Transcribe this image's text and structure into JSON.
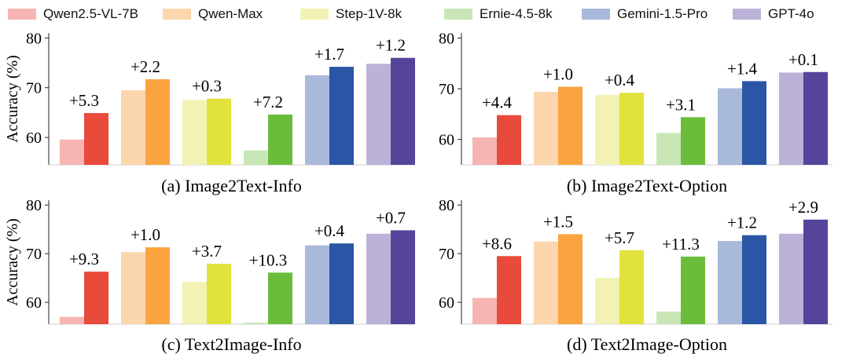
{
  "legend": [
    {
      "name": "Qwen2.5-VL-7B",
      "base": "#f6b5b3",
      "improved": "#e84a3c"
    },
    {
      "name": "Qwen-Max",
      "base": "#fcd6ad",
      "improved": "#f9a43f"
    },
    {
      "name": "Step-1V-8k",
      "base": "#f1f2b3",
      "improved": "#e1e23c"
    },
    {
      "name": "Ernie-4.5-8k",
      "base": "#c8e6b6",
      "improved": "#6cbc3c"
    },
    {
      "name": "Gemini-1.5-Pro",
      "base": "#a9b9db",
      "improved": "#2b56a6"
    },
    {
      "name": "GPT-4o",
      "base": "#bcb2d8",
      "improved": "#56449b"
    }
  ],
  "chart_data": [
    {
      "type": "bar",
      "title": "(a) Image2Text-Info",
      "ylabel": "Accuracy (%)",
      "ylim": [
        54.5,
        81
      ],
      "yticks": [
        "60",
        "70",
        "80"
      ],
      "categories": [
        "Qwen2.5-VL-7B",
        "Qwen-Max",
        "Step-1V-8k",
        "Ernie-4.5-8k",
        "Gemini-1.5-Pro",
        "GPT-4o"
      ],
      "series": [
        {
          "name": "base",
          "values": [
            59.6,
            69.5,
            67.5,
            57.4,
            72.5,
            74.8
          ]
        },
        {
          "name": "improved",
          "values": [
            64.9,
            71.7,
            67.8,
            64.6,
            74.2,
            76.0
          ]
        }
      ],
      "labels": [
        "+5.3",
        "+2.2",
        "+0.3",
        "+7.2",
        "+1.7",
        "+1.2"
      ]
    },
    {
      "type": "bar",
      "title": "(b) Image2Text-Option",
      "ylabel": "",
      "ylim": [
        55,
        81
      ],
      "yticks": [
        "60",
        "70",
        "80"
      ],
      "categories": [
        "Qwen2.5-VL-7B",
        "Qwen-Max",
        "Step-1V-8k",
        "Ernie-4.5-8k",
        "Gemini-1.5-Pro",
        "GPT-4o"
      ],
      "series": [
        {
          "name": "base",
          "values": [
            60.4,
            69.4,
            68.8,
            61.3,
            70.1,
            73.2
          ]
        },
        {
          "name": "improved",
          "values": [
            64.8,
            70.4,
            69.2,
            64.4,
            71.5,
            73.3
          ]
        }
      ],
      "labels": [
        "+4.4",
        "+1.0",
        "+0.4",
        "+3.1",
        "+1.4",
        "+0.1"
      ]
    },
    {
      "type": "bar",
      "title": "(c) Text2Image-Info",
      "ylabel": "Accuracy (%)",
      "ylim": [
        55.5,
        81
      ],
      "yticks": [
        "60",
        "70",
        "80"
      ],
      "categories": [
        "Qwen2.5-VL-7B",
        "Qwen-Max",
        "Step-1V-8k",
        "Ernie-4.5-8k",
        "Gemini-1.5-Pro",
        "GPT-4o"
      ],
      "series": [
        {
          "name": "base",
          "values": [
            57.0,
            70.3,
            64.2,
            55.8,
            71.7,
            74.1
          ]
        },
        {
          "name": "improved",
          "values": [
            66.3,
            71.3,
            67.9,
            66.1,
            72.1,
            74.8
          ]
        }
      ],
      "labels": [
        "+9.3",
        "+1.0",
        "+3.7",
        "+10.3",
        "+0.4",
        "+0.7"
      ]
    },
    {
      "type": "bar",
      "title": "(d) Text2Image-Option",
      "ylabel": "",
      "ylim": [
        55.5,
        81
      ],
      "yticks": [
        "60",
        "70",
        "80"
      ],
      "categories": [
        "Qwen2.5-VL-7B",
        "Qwen-Max",
        "Step-1V-8k",
        "Ernie-4.5-8k",
        "Gemini-1.5-Pro",
        "GPT-4o"
      ],
      "series": [
        {
          "name": "base",
          "values": [
            60.9,
            72.5,
            65.0,
            58.1,
            72.6,
            74.1
          ]
        },
        {
          "name": "improved",
          "values": [
            69.5,
            74.0,
            70.7,
            69.4,
            73.8,
            77.0
          ]
        }
      ],
      "labels": [
        "+8.6",
        "+1.5",
        "+5.7",
        "+11.3",
        "+1.2",
        "+2.9"
      ]
    }
  ]
}
